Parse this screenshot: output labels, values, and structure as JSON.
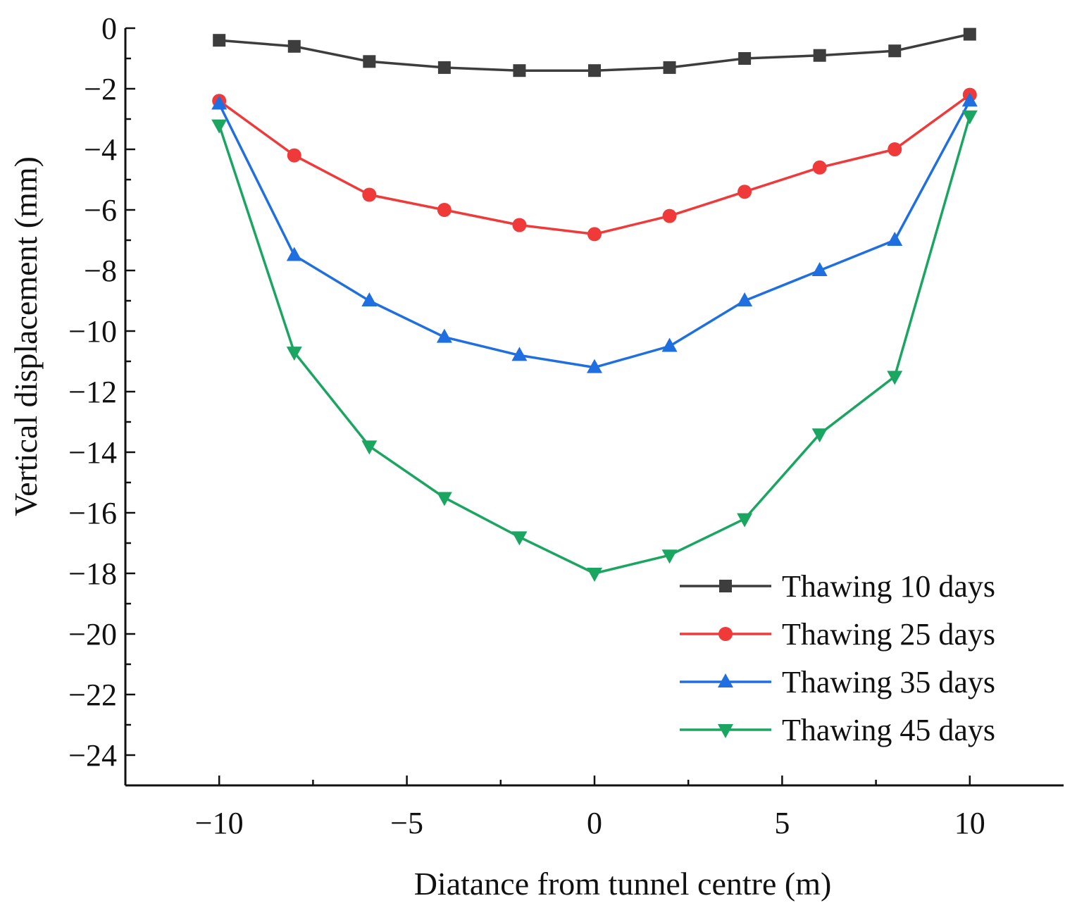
{
  "chart_data": {
    "type": "line",
    "title": "",
    "xlabel": "Diatance from tunnel centre (m)",
    "ylabel": "Vertical displacement (mm)",
    "xlim": [
      -12.5,
      12.5
    ],
    "ylim": [
      -25,
      0
    ],
    "x_ticks": [
      -10,
      -5,
      0,
      5,
      10
    ],
    "x_tick_labels": [
      "−10",
      "−5",
      "0",
      "5",
      "10"
    ],
    "y_ticks": [
      0,
      -2,
      -4,
      -6,
      -8,
      -10,
      -12,
      -14,
      -16,
      -18,
      -20,
      -22,
      -24
    ],
    "y_tick_labels": [
      "0",
      "−2",
      "−4",
      "−6",
      "−8",
      "−10",
      "−12",
      "−14",
      "−16",
      "−18",
      "−20",
      "−22",
      "−24"
    ],
    "grid": false,
    "legend_position": "bottom-right",
    "x": [
      -10,
      -8,
      -6,
      -4,
      -2,
      0,
      2,
      4,
      6,
      8,
      10
    ],
    "series": [
      {
        "name": "Thawing 10 days",
        "color": "#3d3d3d",
        "marker": "square",
        "values": [
          -0.4,
          -0.6,
          -1.1,
          -1.3,
          -1.4,
          -1.4,
          -1.3,
          -1.0,
          -0.9,
          -0.75,
          -0.2
        ]
      },
      {
        "name": "Thawing 25 days",
        "color": "#f03a3a",
        "marker": "circle",
        "values": [
          -2.4,
          -4.2,
          -5.5,
          -6.0,
          -6.5,
          -6.8,
          -6.2,
          -5.4,
          -4.6,
          -4.0,
          -2.2
        ]
      },
      {
        "name": "Thawing 35 days",
        "color": "#1f6fe0",
        "marker": "triangle-up",
        "values": [
          -2.5,
          -7.5,
          -9.0,
          -10.2,
          -10.8,
          -11.2,
          -10.5,
          -9.0,
          -8.0,
          -7.0,
          -2.4
        ]
      },
      {
        "name": "Thawing 45 days",
        "color": "#1aa560",
        "marker": "triangle-down",
        "values": [
          -3.2,
          -10.7,
          -13.8,
          -15.5,
          -16.8,
          -18.0,
          -17.4,
          -16.2,
          -13.4,
          -11.5,
          -2.9
        ]
      }
    ]
  }
}
